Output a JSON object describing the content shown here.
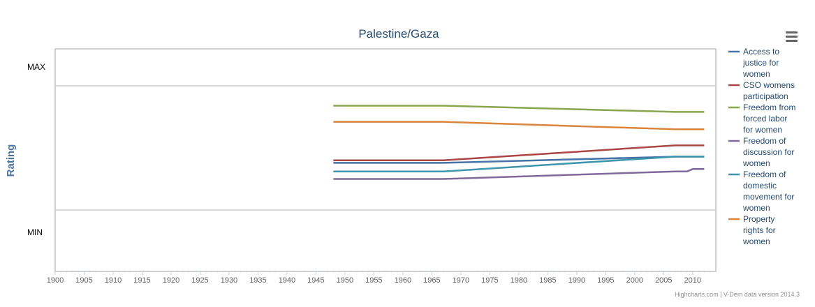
{
  "chart_data": {
    "type": "line",
    "title": "Palestine/Gaza",
    "ylabel": "Rating",
    "y_ticks": [
      "MAX",
      "MIN"
    ],
    "xlim": [
      1900,
      2014
    ],
    "x_ticks": [
      1900,
      1905,
      1910,
      1915,
      1920,
      1925,
      1930,
      1935,
      1940,
      1945,
      1950,
      1955,
      1960,
      1965,
      1970,
      1975,
      1980,
      1985,
      1990,
      1995,
      2000,
      2005,
      2010
    ],
    "ylim": [
      0,
      1
    ],
    "grid": true,
    "legend_position": "right",
    "series": [
      {
        "name": "Access to justice for women",
        "legend_lines": [
          "Access to",
          "justice for",
          "women"
        ],
        "color": "#4572a7",
        "points": [
          [
            1948,
            0.38
          ],
          [
            1967,
            0.38
          ],
          [
            2007,
            0.43
          ],
          [
            2012,
            0.43
          ]
        ]
      },
      {
        "name": "CSO womens participation",
        "legend_lines": [
          "CSO womens",
          "participation"
        ],
        "color": "#aa4643",
        "points": [
          [
            1948,
            0.4
          ],
          [
            1967,
            0.4
          ],
          [
            2007,
            0.52
          ],
          [
            2012,
            0.52
          ]
        ]
      },
      {
        "name": "Freedom from forced labor for women",
        "legend_lines": [
          "Freedom from",
          "forced labor",
          "for women"
        ],
        "color": "#89a54e",
        "points": [
          [
            1948,
            0.84
          ],
          [
            1967,
            0.84
          ],
          [
            2007,
            0.79
          ],
          [
            2012,
            0.79
          ]
        ]
      },
      {
        "name": "Freedom of discussion for women",
        "legend_lines": [
          "Freedom of",
          "discussion for",
          "women"
        ],
        "color": "#80699b",
        "points": [
          [
            1948,
            0.25
          ],
          [
            1967,
            0.25
          ],
          [
            2007,
            0.31
          ],
          [
            2009,
            0.31
          ],
          [
            2010,
            0.33
          ],
          [
            2012,
            0.33
          ]
        ]
      },
      {
        "name": "Freedom of domestic movement for women",
        "legend_lines": [
          "Freedom of",
          "domestic",
          "movement for",
          "women"
        ],
        "color": "#3d96ae",
        "points": [
          [
            1948,
            0.31
          ],
          [
            1967,
            0.31
          ],
          [
            2007,
            0.43
          ],
          [
            2012,
            0.43
          ]
        ]
      },
      {
        "name": "Property rights for women",
        "legend_lines": [
          "Property",
          "rights for",
          "women"
        ],
        "color": "#db843d",
        "points": [
          [
            1948,
            0.71
          ],
          [
            1967,
            0.71
          ],
          [
            2007,
            0.65
          ],
          [
            2012,
            0.65
          ]
        ]
      }
    ]
  },
  "credits": "Highcharts.com | V-Dem data version 2014.3",
  "menu_icon": "hamburger-menu-icon"
}
